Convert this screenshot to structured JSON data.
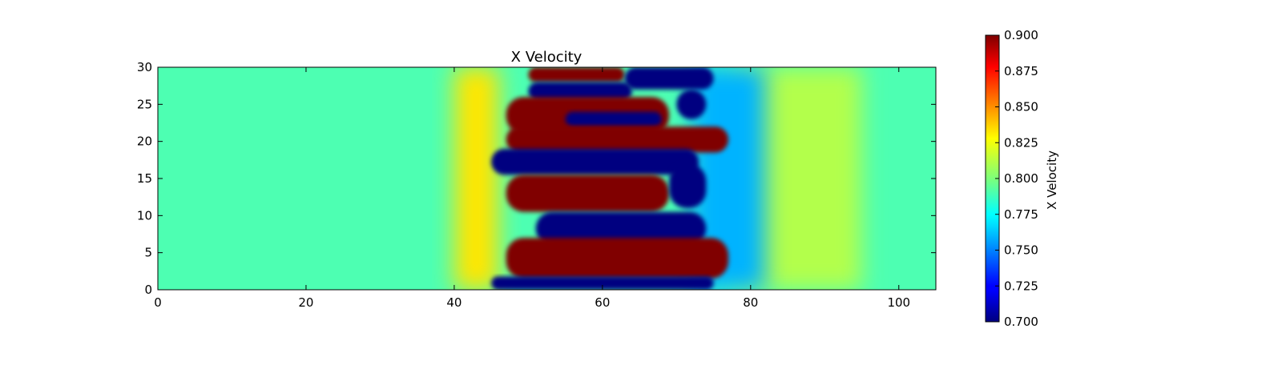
{
  "chart_data": {
    "type": "heatmap",
    "title": "X Velocity",
    "xlabel": "",
    "ylabel": "",
    "xlim": [
      0,
      105
    ],
    "ylim": [
      0,
      30
    ],
    "x_ticks": [
      0,
      20,
      40,
      60,
      80,
      100
    ],
    "y_ticks": [
      0,
      5,
      10,
      15,
      20,
      25,
      30
    ],
    "colormap": "jet",
    "colorbar": {
      "label": "X Velocity",
      "vmin": 0.7,
      "vmax": 0.9,
      "ticks": [
        "0.700",
        "0.725",
        "0.750",
        "0.775",
        "0.800",
        "0.825",
        "0.850",
        "0.875",
        "0.900"
      ]
    },
    "background_value": 0.79,
    "regions": [
      {
        "name": "upstream-gradient",
        "x": [
          40,
          46
        ],
        "y": [
          0,
          30
        ],
        "value": 0.83
      },
      {
        "name": "downstream-gradient",
        "x": [
          78,
          95
        ],
        "y": [
          0,
          30
        ],
        "value": 0.81
      },
      {
        "name": "wake-low",
        "x": [
          72,
          82
        ],
        "y": [
          0,
          30
        ],
        "value": 0.76
      },
      {
        "name": "top-red",
        "x": [
          50,
          63
        ],
        "y": [
          28,
          30
        ],
        "value": 0.9
      },
      {
        "name": "top-blue",
        "x": [
          63,
          75
        ],
        "y": [
          27,
          30
        ],
        "value": 0.7
      },
      {
        "name": "blue-band-1",
        "x": [
          50,
          64
        ],
        "y": [
          25.5,
          28
        ],
        "value": 0.7
      },
      {
        "name": "red-band-1",
        "x": [
          47,
          69
        ],
        "y": [
          21,
          26
        ],
        "value": 0.9
      },
      {
        "name": "blue-inner",
        "x": [
          55,
          68
        ],
        "y": [
          22,
          24
        ],
        "value": 0.7
      },
      {
        "name": "blue-right-1",
        "x": [
          70,
          74
        ],
        "y": [
          23,
          27
        ],
        "value": 0.7
      },
      {
        "name": "red-band-2",
        "x": [
          47,
          77
        ],
        "y": [
          18.5,
          22
        ],
        "value": 0.9
      },
      {
        "name": "blue-band-2",
        "x": [
          45,
          73
        ],
        "y": [
          15.5,
          19
        ],
        "value": 0.7
      },
      {
        "name": "red-band-3",
        "x": [
          47,
          69
        ],
        "y": [
          10.5,
          15.5
        ],
        "value": 0.9
      },
      {
        "name": "blue-right-2",
        "x": [
          69,
          74
        ],
        "y": [
          11,
          17
        ],
        "value": 0.7
      },
      {
        "name": "blue-band-3",
        "x": [
          51,
          74
        ],
        "y": [
          6,
          10.5
        ],
        "value": 0.7
      },
      {
        "name": "red-band-4",
        "x": [
          47,
          77
        ],
        "y": [
          1.5,
          7
        ],
        "value": 0.9
      },
      {
        "name": "blue-bottom",
        "x": [
          45,
          75
        ],
        "y": [
          0,
          1.8
        ],
        "value": 0.7
      }
    ]
  }
}
